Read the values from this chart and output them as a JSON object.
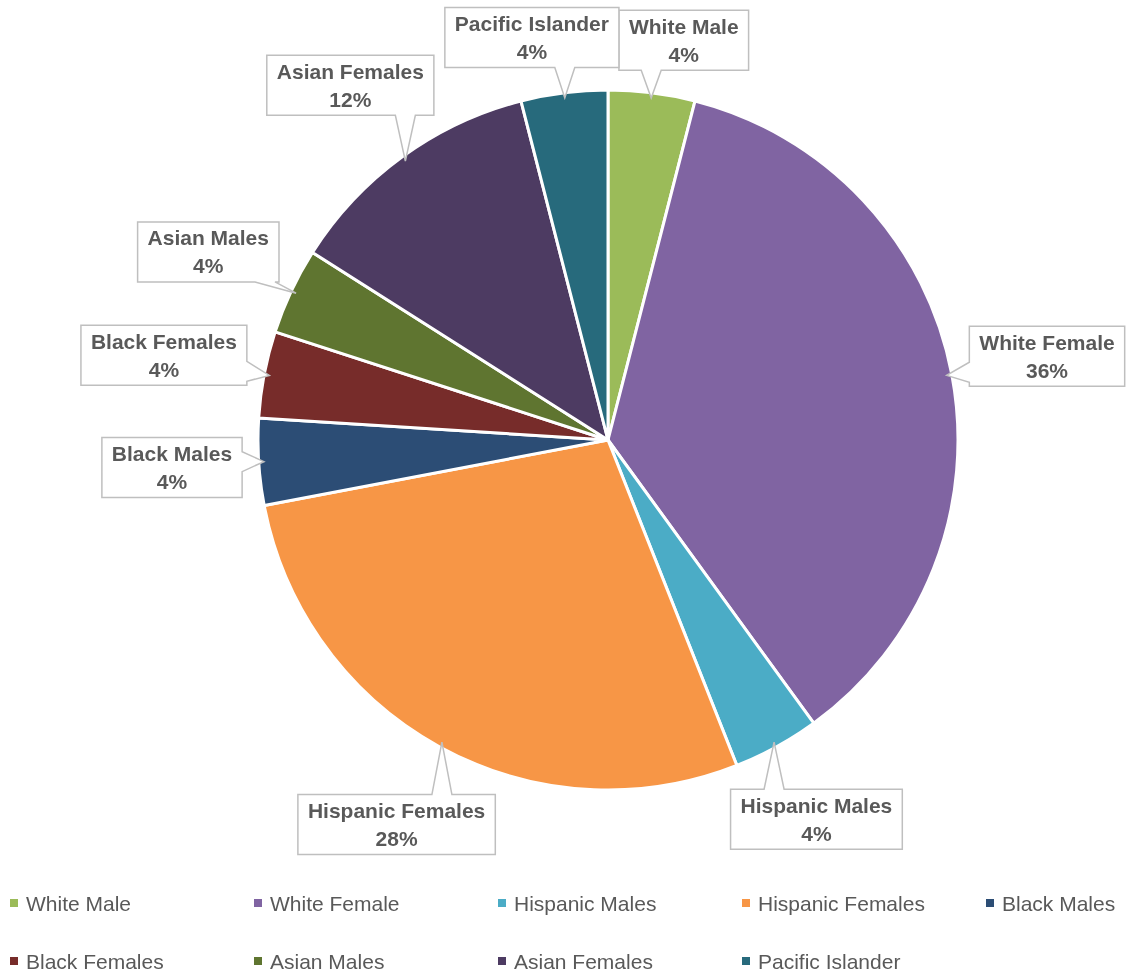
{
  "chart_data": {
    "type": "pie",
    "categories": [
      "White Male",
      "White Female",
      "Hispanic Males",
      "Hispanic Females",
      "Black Males",
      "Black Females",
      "Asian Males",
      "Asian Females",
      "Pacific Islander"
    ],
    "values": [
      4,
      36,
      4,
      28,
      4,
      4,
      4,
      12,
      4
    ],
    "colors": [
      "#9bbb59",
      "#8064a2",
      "#4bacc6",
      "#f79646",
      "#2c4d75",
      "#772c2a",
      "#5f7530",
      "#4d3b62",
      "#276a7c"
    ],
    "value_labels": [
      "4%",
      "36%",
      "4%",
      "28%",
      "4%",
      "4%",
      "4%",
      "12%",
      "4%"
    ],
    "legend": "bottom"
  }
}
